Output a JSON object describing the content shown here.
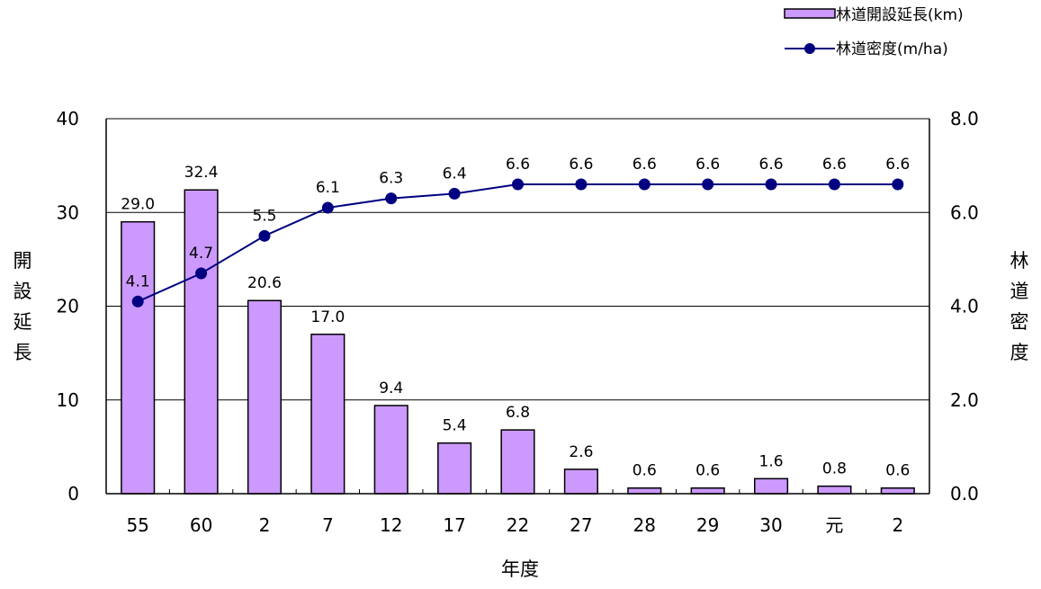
{
  "chart_data": {
    "type": "bar",
    "categories": [
      "55",
      "60",
      "2",
      "7",
      "12",
      "17",
      "22",
      "27",
      "28",
      "29",
      "30",
      "元",
      "2"
    ],
    "xlabel": "年度",
    "ylabel": "開設延長",
    "y2label": "林道密度",
    "ylim": [
      0,
      40
    ],
    "y2lim": [
      0,
      8
    ],
    "yticks": [
      "0",
      "10",
      "20",
      "30",
      "40"
    ],
    "y2ticks": [
      "0.0",
      "2.0",
      "4.0",
      "6.0",
      "8.0"
    ],
    "grid": true,
    "legend_position": "top-right",
    "series": [
      {
        "name": "林道開設延長(km)",
        "type": "bar",
        "axis": "left",
        "color": "#cc99ff",
        "values": [
          29.0,
          32.4,
          20.6,
          17.0,
          9.4,
          5.4,
          6.8,
          2.6,
          0.6,
          0.6,
          1.6,
          0.8,
          0.6
        ],
        "labels": [
          "29.0",
          "32.4",
          "20.6",
          "17.0",
          "9.4",
          "5.4",
          "6.8",
          "2.6",
          "0.6",
          "0.6",
          "1.6",
          "0.8",
          "0.6"
        ]
      },
      {
        "name": "林道密度(m/ha)",
        "type": "line",
        "axis": "right",
        "color": "#000080",
        "values": [
          4.1,
          4.7,
          5.5,
          6.1,
          6.3,
          6.4,
          6.6,
          6.6,
          6.6,
          6.6,
          6.6,
          6.6,
          6.6
        ],
        "labels": [
          "4.1",
          "4.7",
          "5.5",
          "6.1",
          "6.3",
          "6.4",
          "6.6",
          "6.6",
          "6.6",
          "6.6",
          "6.6",
          "6.6",
          "6.6"
        ]
      }
    ]
  }
}
